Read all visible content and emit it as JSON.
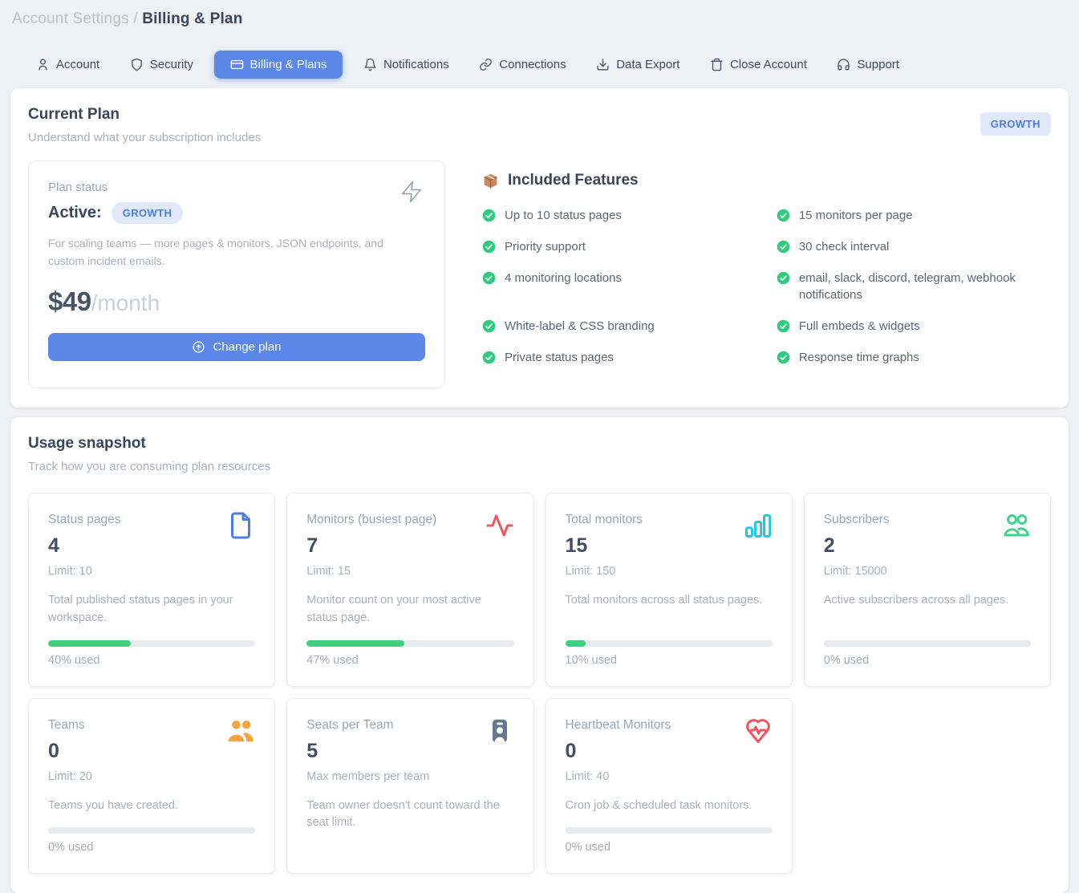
{
  "breadcrumb": {
    "section": "Account Settings",
    "separator": "/",
    "page": "Billing & Plan"
  },
  "tabs": [
    {
      "label": "Account",
      "icon": "user",
      "active": false
    },
    {
      "label": "Security",
      "icon": "shield",
      "active": false
    },
    {
      "label": "Billing & Plans",
      "icon": "credit-card",
      "active": true
    },
    {
      "label": "Notifications",
      "icon": "bell",
      "active": false
    },
    {
      "label": "Connections",
      "icon": "link",
      "active": false
    },
    {
      "label": "Data Export",
      "icon": "download",
      "active": false
    },
    {
      "label": "Close Account",
      "icon": "trash",
      "active": false
    },
    {
      "label": "Support",
      "icon": "headset",
      "active": false
    }
  ],
  "current_plan": {
    "title": "Current Plan",
    "subtitle": "Understand what your subscription includes",
    "plan_badge": "GROWTH",
    "status": {
      "label": "Plan status",
      "value": "Active:",
      "badge": "GROWTH",
      "description": "For scaling teams — more pages & monitors, JSON endpoints, and custom incident emails.",
      "price": "$49",
      "period": "/month",
      "button_label": "Change plan",
      "button_icon": "arrow-up-circle",
      "corner_icon": "bolt"
    },
    "features": {
      "icon": "package",
      "title": "Included Features",
      "check_icon": "check-circle",
      "items": [
        "Up to 10 status pages",
        "15 monitors per page",
        "Priority support",
        "30 check interval",
        "4 monitoring locations",
        "email, slack, discord, telegram, webhook notifications",
        "White-label & CSS branding",
        "Full embeds & widgets",
        "Private status pages",
        "Response time graphs"
      ]
    }
  },
  "usage": {
    "title": "Usage snapshot",
    "subtitle": "Track how you are consuming plan resources",
    "cards": [
      {
        "title": "Status pages",
        "value": "4",
        "limit": "Limit: 10",
        "description": "Total published status pages in your workspace.",
        "percent": 40,
        "percent_label": "40% used",
        "icon": "file",
        "icon_color": "#4a7de9"
      },
      {
        "title": "Monitors (busiest page)",
        "value": "7",
        "limit": "Limit: 15",
        "description": "Monitor count on your most active status page.",
        "percent": 47,
        "percent_label": "47% used",
        "icon": "activity",
        "icon_color": "#f4525c"
      },
      {
        "title": "Total monitors",
        "value": "15",
        "limit": "Limit: 150",
        "description": "Total monitors across all status pages.",
        "percent": 10,
        "percent_label": "10% used",
        "icon": "bar-chart",
        "icon_color": "#1fc9e0"
      },
      {
        "title": "Subscribers",
        "value": "2",
        "limit": "Limit: 15000",
        "description": "Active subscribers across all pages.",
        "percent": 0,
        "percent_label": "0% used",
        "icon": "users",
        "icon_color": "#3bd689"
      },
      {
        "title": "Teams",
        "value": "0",
        "limit": "Limit: 20",
        "description": "Teams you have created.",
        "percent": 0,
        "percent_label": "0% used",
        "icon": "users-filled",
        "icon_color": "#f6a43e"
      },
      {
        "title": "Seats per Team",
        "value": "5",
        "limit": "Max members per team",
        "description": "Team owner doesn't count toward the seat limit.",
        "percent": null,
        "percent_label": null,
        "icon": "id-badge",
        "icon_color": "#64788f"
      },
      {
        "title": "Heartbeat Monitors",
        "value": "0",
        "limit": "Limit: 40",
        "description": "Cron job & scheduled task monitors.",
        "percent": 0,
        "percent_label": "0% used",
        "icon": "heart-pulse",
        "icon_color": "#f4525c"
      }
    ]
  },
  "colors": {
    "accent": "#5b87e8",
    "badge_bg": "#e0e9fb",
    "badge_text": "#4a7ce0",
    "check_green": "#2fcc7e",
    "progress_green": "#3fd07c",
    "progress_track": "#e7eaee"
  }
}
